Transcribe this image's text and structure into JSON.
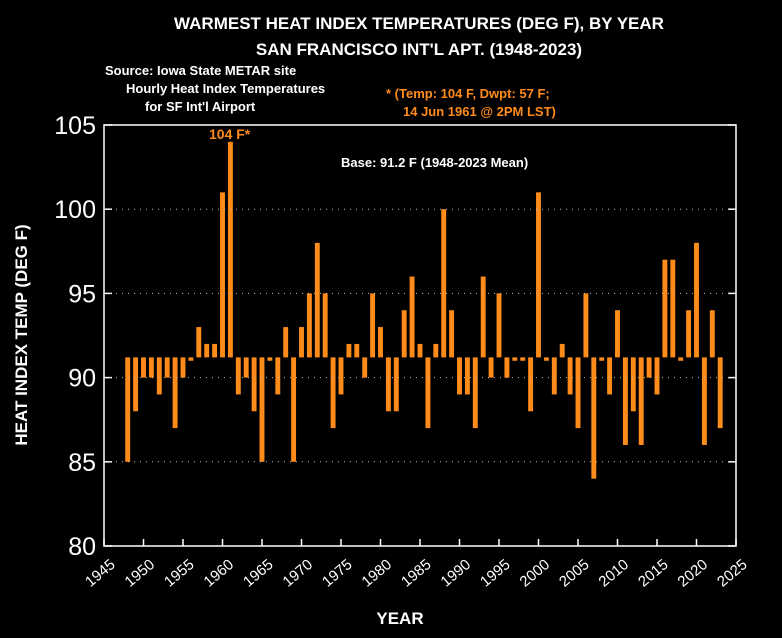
{
  "title_line1": "WARMEST HEAT INDEX TEMPERATURES (DEG F), BY YEAR",
  "title_line2": "SAN FRANCISCO INT'L APT. (1948-2023)",
  "source_line1": "Source: Iowa State METAR site",
  "source_line2": "Hourly  Heat Index Temperatures",
  "source_line3": "for SF Int'l Airport",
  "note_line1": "* (Temp: 104 F, Dwpt: 57 F;",
  "note_line2": "14 Jun 1961 @ 2PM LST)",
  "peak_label": "104 F*",
  "base_label": "Base: 91.2 F (1948-2023 Mean)",
  "colors": {
    "background": "#000000",
    "bars": "#FF8C1A",
    "text": "#FFFFFF",
    "accent_text": "#FF8C1A"
  },
  "chart_data": {
    "type": "bar",
    "title": "WARMEST HEAT INDEX TEMPERATURES (DEG F), BY YEAR",
    "subtitle": "SAN FRANCISCO INT'L APT. (1948-2023)",
    "xlabel": "YEAR",
    "ylabel": "HEAT INDEX TEMP (DEG F)",
    "xlim": [
      1945,
      2025
    ],
    "ylim": [
      80,
      105
    ],
    "xticks": [
      1945,
      1950,
      1955,
      1960,
      1965,
      1970,
      1975,
      1980,
      1985,
      1990,
      1995,
      2000,
      2005,
      2010,
      2015,
      2020,
      2025
    ],
    "yticks": [
      80,
      85,
      90,
      95,
      100,
      105
    ],
    "grid": false,
    "baseline": 91.2,
    "x": [
      1948,
      1949,
      1950,
      1951,
      1952,
      1953,
      1954,
      1955,
      1956,
      1957,
      1958,
      1959,
      1960,
      1961,
      1962,
      1963,
      1964,
      1965,
      1966,
      1967,
      1968,
      1969,
      1970,
      1971,
      1972,
      1973,
      1974,
      1975,
      1976,
      1977,
      1978,
      1979,
      1980,
      1981,
      1982,
      1983,
      1984,
      1985,
      1986,
      1987,
      1988,
      1989,
      1990,
      1991,
      1992,
      1993,
      1994,
      1995,
      1996,
      1997,
      1998,
      1999,
      2000,
      2001,
      2002,
      2003,
      2004,
      2005,
      2006,
      2007,
      2008,
      2009,
      2010,
      2011,
      2012,
      2013,
      2014,
      2015,
      2016,
      2017,
      2018,
      2019,
      2020,
      2021,
      2022,
      2023
    ],
    "values": [
      85,
      88,
      90,
      90,
      89,
      90,
      87,
      90,
      91,
      93,
      92,
      92,
      101,
      104,
      89,
      90,
      88,
      85,
      91,
      89,
      93,
      85,
      93,
      95,
      98,
      95,
      87,
      89,
      92,
      92,
      90,
      95,
      93,
      88,
      88,
      94,
      96,
      92,
      87,
      92,
      100,
      94,
      89,
      89,
      87,
      96,
      90,
      95,
      90,
      91,
      91,
      88,
      101,
      91,
      89,
      92,
      89,
      87,
      95,
      84,
      91,
      89,
      94,
      86,
      88,
      86,
      90,
      89,
      97,
      97,
      91,
      94,
      98,
      86,
      94,
      87
    ]
  }
}
